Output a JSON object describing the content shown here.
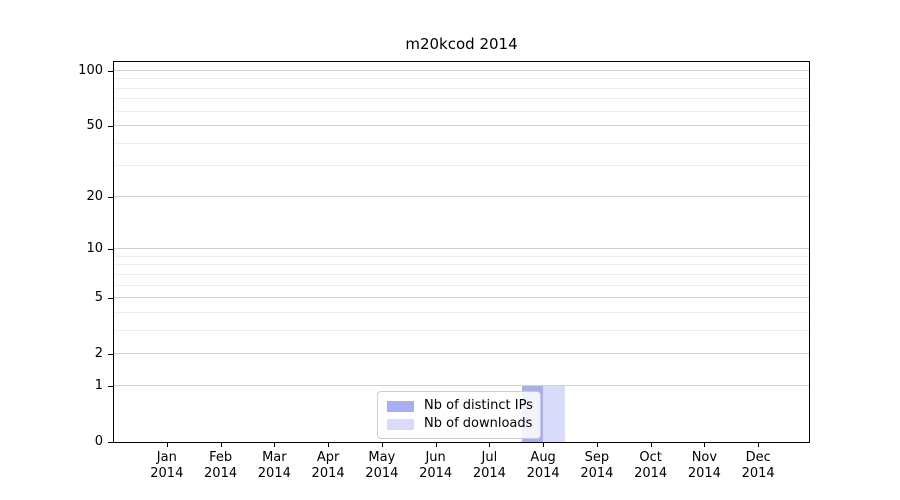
{
  "title": "m20kcod 2014",
  "chart_data": {
    "type": "bar",
    "title": "m20kcod 2014",
    "categories": [
      "Jan 2014",
      "Feb 2014",
      "Mar 2014",
      "Apr 2014",
      "May 2014",
      "Jun 2014",
      "Jul 2014",
      "Aug 2014",
      "Sep 2014",
      "Oct 2014",
      "Nov 2014",
      "Dec 2014"
    ],
    "series": [
      {
        "name": "Nb of distinct IPs",
        "color": "#a9aef1",
        "values": [
          0,
          0,
          0,
          0,
          0,
          0,
          0,
          1,
          0,
          0,
          0,
          0
        ]
      },
      {
        "name": "Nb of downloads",
        "color": "#d9dcf9",
        "values": [
          0,
          0,
          0,
          0,
          0,
          0,
          0,
          1,
          0,
          0,
          0,
          0
        ]
      }
    ],
    "xlabel": "",
    "ylabel": "",
    "y_scale": "log1p",
    "ylim": [
      0,
      112
    ],
    "y_major_ticks": [
      100,
      50,
      20,
      10,
      5,
      2,
      1,
      0
    ],
    "y_minor_ticks": [
      90,
      80,
      70,
      60,
      40,
      30,
      9,
      8,
      7,
      6,
      4,
      3
    ],
    "grid": "horizontal",
    "legend_position": "lower center",
    "colors": {
      "major_grid": "#d2d2d2",
      "minor_grid": "#ededed",
      "axis": "#000000",
      "legend_border": "#cccccc"
    }
  }
}
